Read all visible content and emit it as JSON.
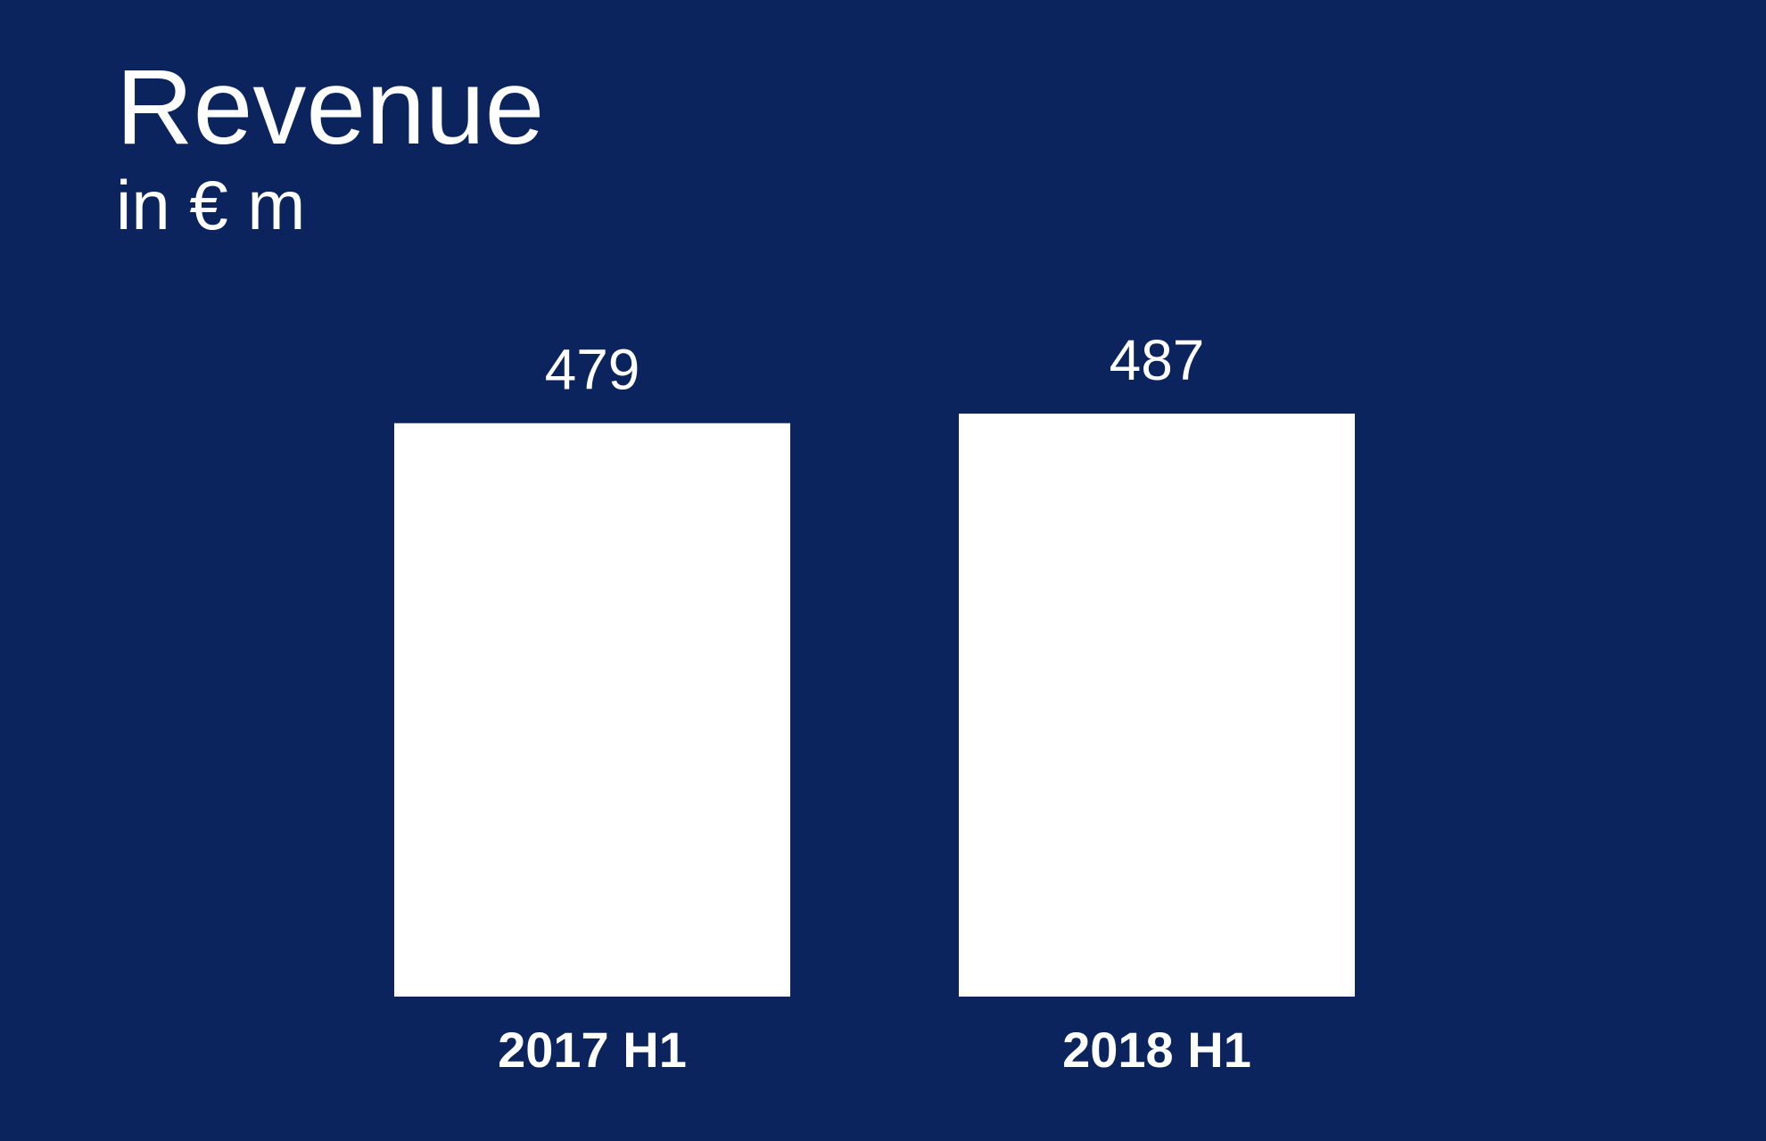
{
  "chart_data": {
    "type": "bar",
    "title": "Revenue",
    "subtitle": "in € m",
    "categories": [
      "2017 H1",
      "2018 H1"
    ],
    "values": [
      479,
      487
    ],
    "value_labels": [
      "479",
      "487"
    ],
    "xlabel": "",
    "ylabel": "",
    "ylim": [
      0,
      487
    ],
    "grid": false,
    "legend": "none",
    "colors": {
      "background": "#0b245e",
      "bar": "#ffffff",
      "text": "#ffffff"
    }
  }
}
